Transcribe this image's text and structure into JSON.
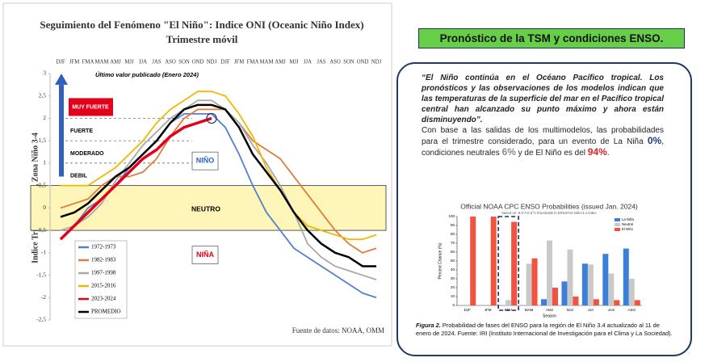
{
  "chart_data": [
    {
      "type": "line",
      "title": "Seguimiento del Fenómeno \"El Niño\": Indice ONI (Oceanic Niño Index)",
      "subtitle": "Trimestre móvil",
      "y_label": "Indice Trimestral ONI, Zona Niño 3-4",
      "source": "Fuente de datos: NOAA, OMM",
      "annotation": "Último valor publicado  (Enero 2024)",
      "categories": [
        "DJF",
        "JFM",
        "FMA",
        "MAM",
        "AMJ",
        "MJJ",
        "JJA",
        "JAS",
        "ASO",
        "SON",
        "OND",
        "NDJ",
        "DJF",
        "JFM",
        "FMA",
        "MAM",
        "AMJ",
        "MJJ",
        "JJA",
        "JAS",
        "ASO",
        "SON",
        "OND",
        "NDJ"
      ],
      "series": [
        {
          "name": "1972-1973",
          "color": "#4f81d0",
          "values": [
            -0.7,
            -0.4,
            0.0,
            0.2,
            0.5,
            0.9,
            1.2,
            1.5,
            1.9,
            2.1,
            2.1,
            2.1,
            1.8,
            1.2,
            0.5,
            -0.1,
            -0.5,
            -0.9,
            -1.1,
            -1.3,
            -1.5,
            -1.7,
            -1.9,
            -2.0
          ]
        },
        {
          "name": "1982-1983",
          "color": "#e07b39",
          "values": [
            0.0,
            0.1,
            0.2,
            0.5,
            0.7,
            0.7,
            0.8,
            1.1,
            1.6,
            2.0,
            2.2,
            2.2,
            2.2,
            1.9,
            1.5,
            1.3,
            1.1,
            0.7,
            0.3,
            -0.1,
            -0.5,
            -0.8,
            -1.0,
            -0.9
          ]
        },
        {
          "name": "1997-1998",
          "color": "#a8a8a8",
          "values": [
            -0.5,
            -0.4,
            -0.2,
            0.1,
            0.6,
            1.0,
            1.4,
            1.7,
            2.0,
            2.2,
            2.4,
            2.4,
            2.2,
            1.9,
            1.4,
            1.0,
            0.5,
            -0.1,
            -0.8,
            -1.1,
            -1.3,
            -1.4,
            -1.5,
            -1.6
          ]
        },
        {
          "name": "2015-2016",
          "color": "#f2b705",
          "values": [
            0.5,
            0.5,
            0.5,
            0.7,
            0.9,
            1.2,
            1.5,
            1.9,
            2.2,
            2.4,
            2.6,
            2.6,
            2.5,
            2.1,
            1.6,
            0.9,
            0.4,
            -0.1,
            -0.4,
            -0.5,
            -0.6,
            -0.7,
            -0.7,
            -0.6
          ]
        },
        {
          "name": "2023-2024",
          "color": "#e3001b",
          "values": [
            -0.7,
            -0.4,
            -0.1,
            0.2,
            0.5,
            0.8,
            1.1,
            1.3,
            1.6,
            1.8,
            1.9,
            2.0,
            null,
            null,
            null,
            null,
            null,
            null,
            null,
            null,
            null,
            null,
            null,
            null
          ]
        },
        {
          "name": "PROMEDIO",
          "color": "#000000",
          "values": [
            -0.2,
            -0.1,
            0.1,
            0.4,
            0.7,
            0.9,
            1.2,
            1.5,
            1.9,
            2.2,
            2.3,
            2.3,
            2.2,
            1.8,
            1.2,
            0.8,
            0.4,
            -0.1,
            -0.5,
            -0.8,
            -1.0,
            -1.1,
            -1.3,
            -1.3
          ]
        }
      ],
      "ylim": [
        -2.5,
        3
      ],
      "yticks": [
        {
          "value": -2.5,
          "label": "-2,5"
        },
        -2,
        {
          "value": -1.5,
          "label": "-1,5"
        },
        -1,
        {
          "value": -0.5,
          "label": "-0,5"
        },
        0,
        {
          "value": 0.5,
          "label": "0,5"
        },
        1,
        {
          "value": 1.5,
          "label": "1,5"
        },
        2,
        {
          "value": 2.5,
          "label": "2,5"
        },
        3
      ],
      "neutral_band": {
        "label": "NEUTRO",
        "range": [
          -0.5,
          0.5
        ]
      },
      "intensity_levels": [
        {
          "label": "DEBIL",
          "value": 0.5
        },
        {
          "label": "MODERADO",
          "value": 1
        },
        {
          "label": "FUERTE",
          "value": 1.5
        },
        {
          "label": "MUY FUERTE",
          "value": 2
        }
      ],
      "phase_labels": [
        "NIÑO",
        "NIÑA"
      ],
      "legend": "lower left",
      "grid": false
    },
    {
      "type": "grouped-bar",
      "title": "Official NOAA CPC ENSO Probabilities (issued Jan. 2024)",
      "subtitle": "based on -0.5°/+0.5°C thresholds in ERSSTv5 Niño-3.4 index",
      "y_label": "Percent Chance (%)",
      "x_label": "Season",
      "categories": [
        "DJF",
        "JFM",
        "FMA",
        "MAM",
        "AMJ",
        "MJJ",
        "JJA",
        "JAS",
        "ASO"
      ],
      "series": [
        {
          "name": "La Niña",
          "color": "#3c7fd9",
          "values": [
            0,
            0,
            0,
            0,
            7,
            27,
            47,
            58,
            64
          ]
        },
        {
          "name": "Neutral",
          "color": "#c9c9c9",
          "values": [
            0,
            0,
            6,
            47,
            73,
            63,
            46,
            36,
            30
          ]
        },
        {
          "name": "El Niño",
          "color": "#f2533f",
          "values": [
            100,
            100,
            94,
            53,
            20,
            10,
            7,
            6,
            6
          ]
        }
      ],
      "ylim": [
        0,
        100
      ],
      "yticks": [
        0,
        10,
        20,
        30,
        40,
        50,
        60,
        70,
        80,
        90,
        100
      ],
      "legend": "upper right",
      "grid": false
    }
  ],
  "header": {
    "title": "Pronóstico de la TSM y condiciones ENSO."
  },
  "text": {
    "quote": "“El Niño continúa en el Océano Pacífico tropical. Los pronósticos y las observaciones de los modelos indican que las temperaturas de la superficie del mar en el Pacífico tropical central han alcanzado su punto máximo y ahora están disminuyendo”.",
    "body": [
      "Con base a las salidas de los multimodelos, las probabilidades para el trimestre considerado, para un evento de La Niña ",
      "0%",
      ", condiciones neutrales ",
      "6%",
      " y de El Niño es del ",
      "94%",
      "."
    ],
    "caption_label": "Figura 2.",
    "caption": " Probabilidad de fases del ENSO para la región de El Niño 3.4 actualizado al 11 de enero de 2024. Fuente: IRI (Instituto Internacional de Investigación para el Clima y La Sociedad)."
  }
}
